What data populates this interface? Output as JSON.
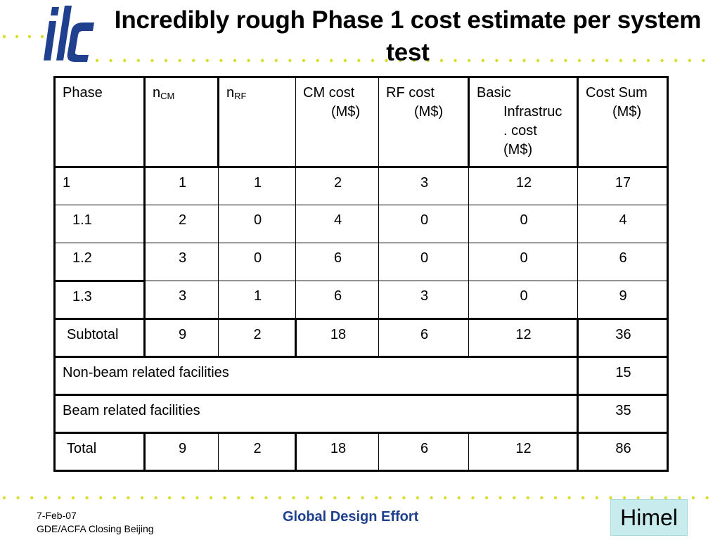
{
  "slide": {
    "title": "Incredibly rough Phase 1 cost estimate per system test",
    "logo_icon": "ilc-logo-icon",
    "accent_color": "#1f3f8f",
    "dot_color": "#d6df2b"
  },
  "table": {
    "headers": {
      "phase": "Phase",
      "n_cm_base": "n",
      "n_cm_sub": "CM",
      "n_rf_base": "n",
      "n_rf_sub": "RF",
      "cm_cost_1": "CM cost",
      "cm_cost_2": "(M$)",
      "rf_cost_1": "RF cost",
      "rf_cost_2": "(M$)",
      "basic_1": "Basic",
      "basic_2": "Infrastruc",
      "basic_3": ". cost",
      "basic_4": "(M$)",
      "sum_1": "Cost Sum",
      "sum_2": "(M$)"
    },
    "rows": [
      {
        "phase": "1",
        "n_cm": "1",
        "n_rf": "1",
        "cm_cost": "2",
        "rf_cost": "3",
        "basic": "12",
        "sum": "17"
      },
      {
        "phase": "1.1",
        "n_cm": "2",
        "n_rf": "0",
        "cm_cost": "4",
        "rf_cost": "0",
        "basic": "0",
        "sum": "4"
      },
      {
        "phase": "1.2",
        "n_cm": "3",
        "n_rf": "0",
        "cm_cost": "6",
        "rf_cost": "0",
        "basic": "0",
        "sum": "6"
      },
      {
        "phase": "1.3",
        "n_cm": "3",
        "n_rf": "1",
        "cm_cost": "6",
        "rf_cost": "3",
        "basic": "0",
        "sum": "9"
      },
      {
        "phase": "Subtotal",
        "n_cm": "9",
        "n_rf": "2",
        "cm_cost": "18",
        "rf_cost": "6",
        "basic": "12",
        "sum": "36"
      }
    ],
    "non_beam": {
      "label": "Non-beam related facilities",
      "sum": "15"
    },
    "beam": {
      "label": "Beam related facilities",
      "sum": "35"
    },
    "total": {
      "phase": "Total",
      "n_cm": "9",
      "n_rf": "2",
      "cm_cost": "18",
      "rf_cost": "6",
      "basic": "12",
      "sum": "86"
    }
  },
  "footer": {
    "date": "7-Feb-07",
    "event": "GDE/ACFA Closing Beijing",
    "center": "Global Design Effort",
    "author": "Himel"
  }
}
